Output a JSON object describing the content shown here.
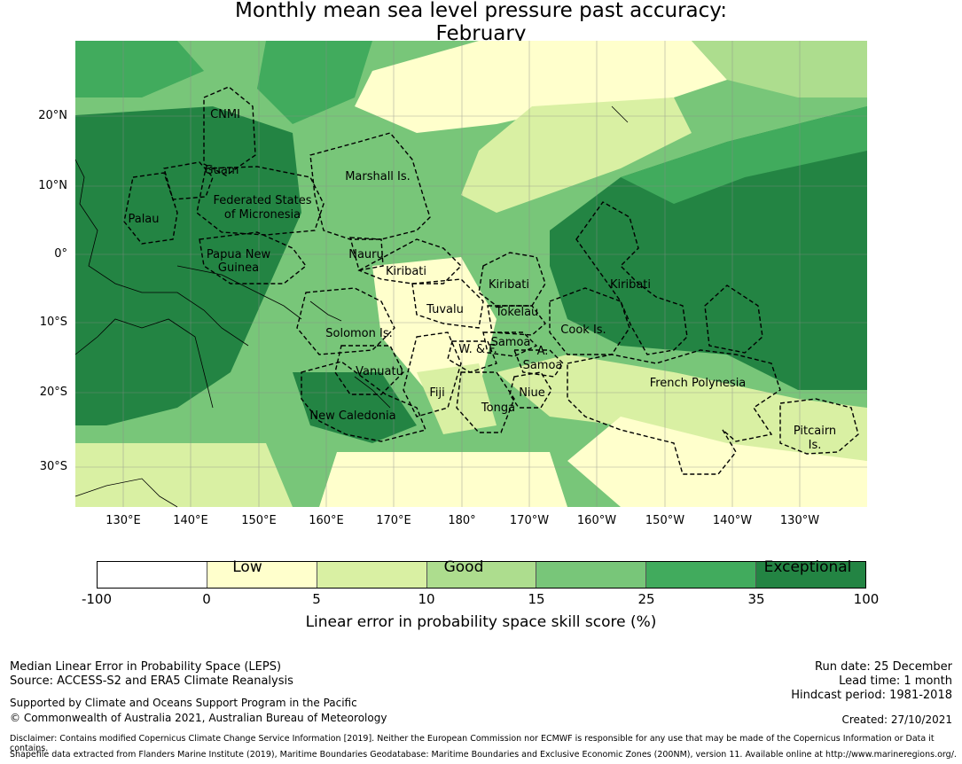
{
  "title": {
    "line1": "Monthly mean sea level pressure past accuracy:",
    "line2": "February"
  },
  "map": {
    "latitude_labels": [
      "20°N",
      "10°N",
      "0°",
      "10°S",
      "20°S",
      "30°S"
    ],
    "longitude_labels": [
      "130°E",
      "140°E",
      "150°E",
      "160°E",
      "170°E",
      "180°",
      "170°W",
      "160°W",
      "150°W",
      "140°W",
      "130°W"
    ],
    "region_labels": [
      "CNMI",
      "Guam",
      "Palau",
      "Federated States",
      "of Micronesia",
      "Marshall Is.",
      "Papua New",
      "Guinea",
      "Nauru",
      "Kiribati",
      "Kiribati",
      "Kiribati",
      "Tuvalu",
      "Tokelau",
      "Solomon Is.",
      "Samoa",
      "A.",
      "Samoa",
      "W. & F.",
      "Cook Is.",
      "Vanuatu",
      "Fiji",
      "Niue",
      "Tonga",
      "French Polynesia",
      "New Caledonia",
      "Pitcairn",
      "Is."
    ]
  },
  "legend": {
    "categories": [
      "Low",
      "Good",
      "Exceptional"
    ],
    "ticks": [
      "-100",
      "0",
      "5",
      "10",
      "15",
      "25",
      "35",
      "100"
    ],
    "colors": [
      "#ffffff",
      "#ffffcc",
      "#d9f0a3",
      "#addd8e",
      "#78c679",
      "#41ab5d",
      "#238443"
    ],
    "label": "Linear error in probability space skill score (%)"
  },
  "footer": {
    "left_line1": "Median Linear Error in Probability Space (LEPS)",
    "left_line2": "Source: ACCESS-S2 and ERA5 Climate Reanalysis",
    "support_line1": "Supported by Climate and Oceans Support Program in the Pacific",
    "support_line2": "© Commonwealth of Australia 2021, Australian Bureau of Meteorology",
    "run_date": "Run date: 25 December",
    "lead_time": "Lead time: 1 month",
    "hindcast": "Hindcast period: 1981-2018",
    "created": "Created: 27/10/2021",
    "disclaimer": "Disclaimer: Contains modified Copernicus Climate Change Service Information [2019]. Neither the European Commission nor ECMWF is responsible for any use that may be made of the Copernicus Information or Data it contains.",
    "shapefile": "Shapefile data extracted from Flanders Marine Institute (2019), Maritime Boundaries Geodatabase: Maritime Boundaries and Exclusive Economic Zones (200NM), version 11. Available online at http://www.marineregions.org/."
  }
}
